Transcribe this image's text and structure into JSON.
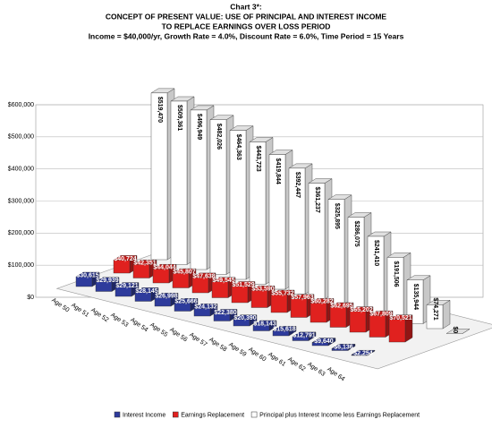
{
  "chart_data": {
    "type": "bar3d",
    "title": "Chart 3*:",
    "subtitle": [
      "CONCEPT OF PRESENT VALUE: USE OF PRINCIPAL AND INTEREST INCOME",
      "TO REPLACE EARNINGS OVER LOSS PERIOD",
      "Income = $40,000/yr,  Growth Rate = 4.0%, Discount Rate = 6.0%, Time Period = 15 Years"
    ],
    "categories": [
      "Age 50",
      "Age 51",
      "Age 52",
      "Age 53",
      "Age 54",
      "Age 55",
      "Age 56",
      "Age 57",
      "Age 58",
      "Age 59",
      "Age 60",
      "Age 61",
      "Age 62",
      "Age 63",
      "Age 64",
      null
    ],
    "series": [
      {
        "name": "Interest Income",
        "color": "#2e3b9c",
        "values": [
          30615,
          29939,
          29121,
          28145,
          26998,
          25666,
          24132,
          22380,
          20390,
          18143,
          15618,
          12791,
          9640,
          6136,
          2254,
          null
        ],
        "value_labels": [
          "$30,615",
          "$29,939",
          "$29,121",
          "$28,145",
          "$26,998",
          "$25,666",
          "$24,132",
          "$22,380",
          "$20,390",
          "$18,143",
          "$15,618",
          "$12,791",
          "$9,640",
          "$6,136",
          "$2,254",
          null
        ]
      },
      {
        "name": "Earnings Replacement",
        "color": "#e0211f",
        "values": [
          40724,
          42351,
          44044,
          45807,
          47638,
          49545,
          51529,
          53590,
          55732,
          57963,
          60282,
          62695,
          65202,
          67809,
          70521,
          null
        ],
        "value_labels": [
          "$40,724",
          "$42,351",
          "$44,044",
          "$45,807",
          "$47,638",
          "$49,545",
          "$51,529",
          "$53,590",
          "$55,732",
          "$57,963",
          "$60,282",
          "$62,695",
          "$65,202",
          "$67,809",
          "$70,521",
          null
        ]
      },
      {
        "name": "Principal plus Interest Income less Earnings Replacement",
        "color": "#ffffff",
        "values": [
          519470,
          509361,
          496949,
          482026,
          464363,
          443723,
          419844,
          392447,
          361237,
          325895,
          286075,
          241410,
          191506,
          135944,
          74271,
          0
        ],
        "value_labels": [
          "$519,470",
          "$509,361",
          "$496,949",
          "$482,026",
          "$464,363",
          "$443,723",
          "$419,844",
          "$392,447",
          "$361,237",
          "$325,895",
          "$286,075",
          "$241,410",
          "$191,506",
          "$135,944",
          "$74,271",
          "$0"
        ]
      }
    ],
    "ylim": [
      0,
      600000
    ],
    "yticks": [
      {
        "value": 0,
        "label": "$0"
      },
      {
        "value": 100000,
        "label": "$100,000"
      },
      {
        "value": 200000,
        "label": "$200,000"
      },
      {
        "value": 300000,
        "label": "$300,000"
      },
      {
        "value": 400000,
        "label": "$400,000"
      },
      {
        "value": 500000,
        "label": "$500,000"
      },
      {
        "value": 600000,
        "label": "$600,000"
      }
    ],
    "grid": true
  }
}
